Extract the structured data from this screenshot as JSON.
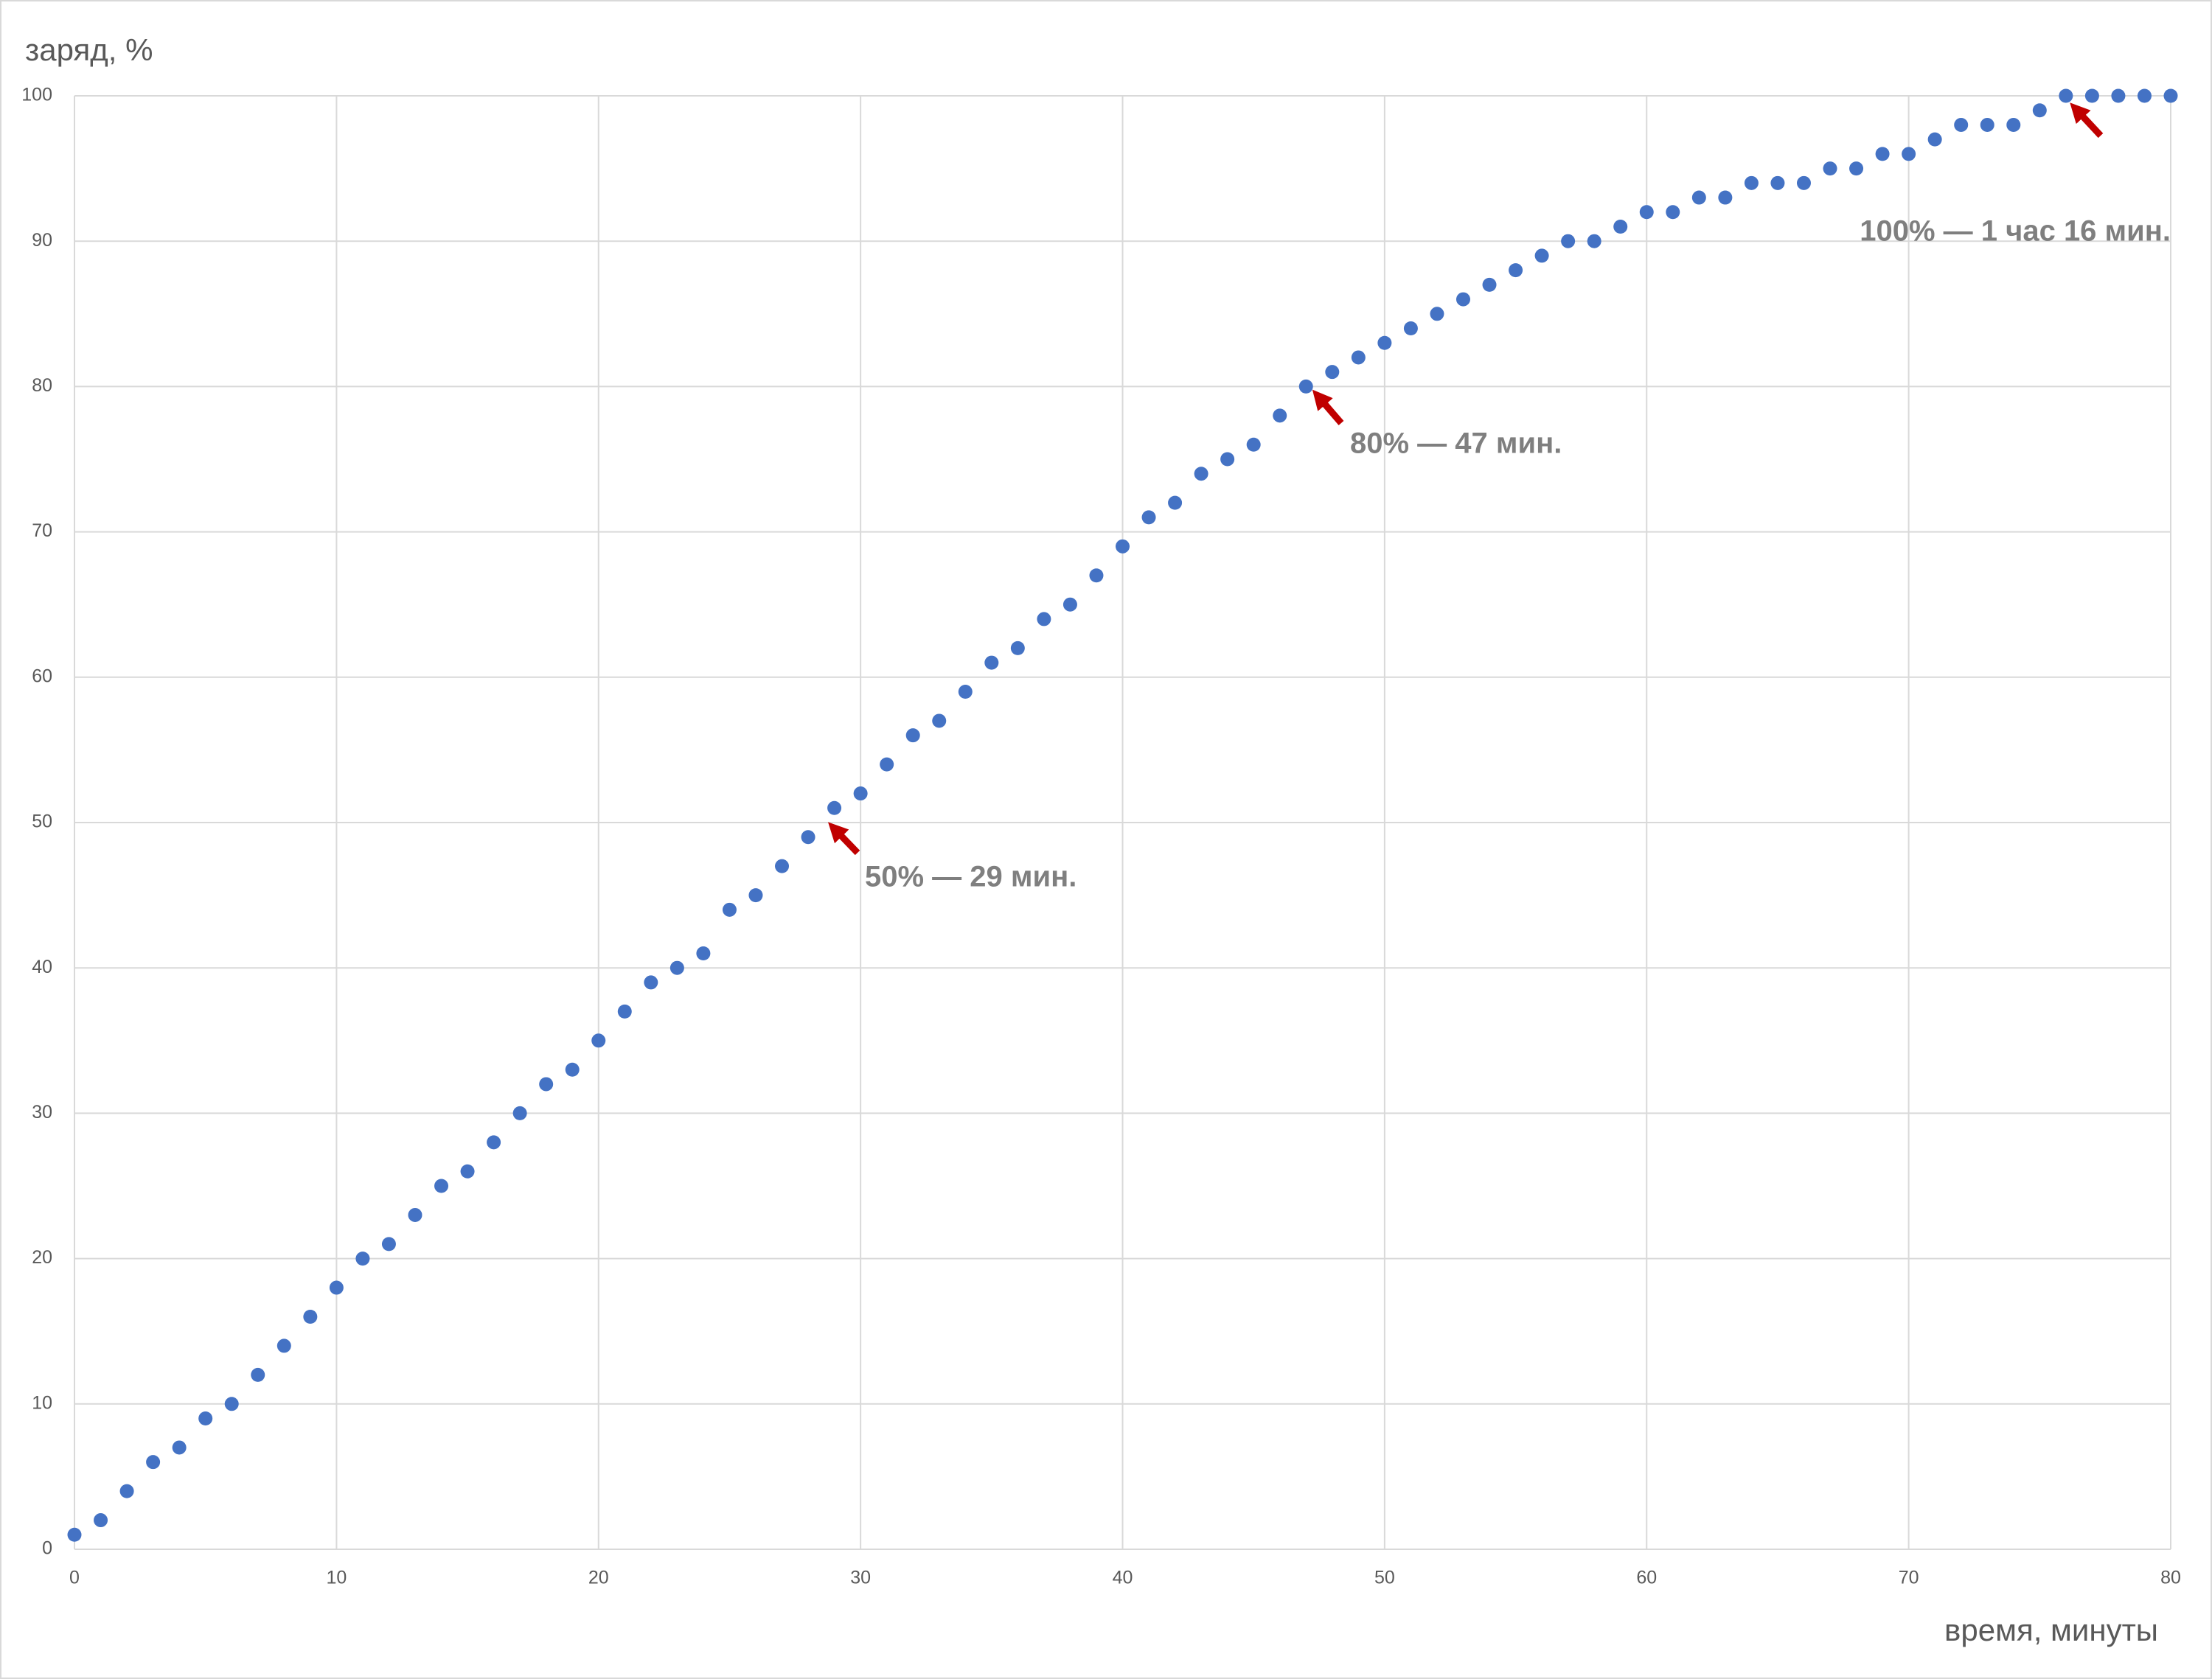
{
  "chart_data": {
    "type": "scatter",
    "x_label": "время, минуты",
    "y_label": "заряд, %",
    "x": [
      0,
      1,
      2,
      3,
      4,
      5,
      6,
      7,
      8,
      9,
      10,
      11,
      12,
      13,
      14,
      15,
      16,
      17,
      18,
      19,
      20,
      21,
      22,
      23,
      24,
      25,
      26,
      27,
      28,
      29,
      30,
      31,
      32,
      33,
      34,
      35,
      36,
      37,
      38,
      39,
      40,
      41,
      42,
      43,
      44,
      45,
      46,
      47,
      48,
      49,
      50,
      51,
      52,
      53,
      54,
      55,
      56,
      57,
      58,
      59,
      60,
      61,
      62,
      63,
      64,
      65,
      66,
      67,
      68,
      69,
      70,
      71,
      72,
      73,
      74,
      75,
      76,
      77,
      78,
      79,
      80
    ],
    "values": [
      1,
      2,
      4,
      6,
      7,
      9,
      10,
      12,
      14,
      16,
      18,
      20,
      21,
      23,
      25,
      26,
      28,
      30,
      32,
      33,
      35,
      37,
      39,
      40,
      41,
      44,
      45,
      47,
      49,
      51,
      52,
      54,
      56,
      57,
      59,
      61,
      62,
      64,
      65,
      67,
      69,
      71,
      72,
      74,
      75,
      76,
      78,
      80,
      81,
      82,
      83,
      84,
      85,
      86,
      87,
      88,
      89,
      90,
      90,
      91,
      92,
      92,
      93,
      93,
      94,
      94,
      94,
      95,
      95,
      96,
      96,
      97,
      98,
      98,
      98,
      99,
      100,
      100,
      100,
      100,
      100
    ],
    "color": "#4472c4",
    "xlim": [
      0,
      80
    ],
    "xticks": [
      0,
      10,
      20,
      30,
      40,
      50,
      60,
      70,
      80
    ],
    "ylim": [
      0,
      100
    ],
    "yticks": [
      0,
      10,
      20,
      30,
      40,
      50,
      60,
      70,
      80,
      90,
      100
    ],
    "grid": true,
    "annotations": [
      "50% — 29 мин.",
      "80% — 47 мин.",
      "100% — 1 час 16 мин."
    ]
  }
}
